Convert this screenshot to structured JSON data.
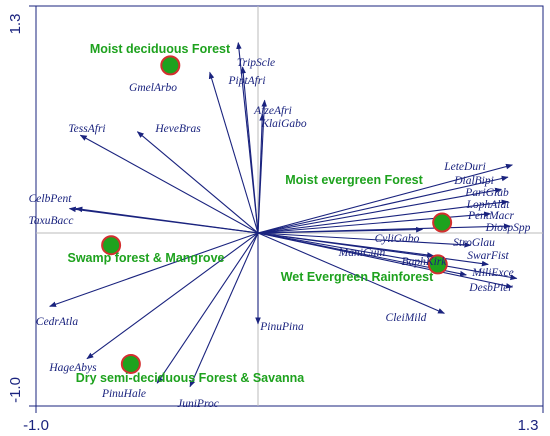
{
  "chart_data": {
    "type": "scatter",
    "title": "",
    "xlabel": "",
    "ylabel": "",
    "xlim": [
      -1.0,
      1.3
    ],
    "ylim": [
      -1.0,
      1.3
    ],
    "x_tick_labels": [
      "-1.0",
      "1.3"
    ],
    "y_tick_labels": [
      "1.3",
      "-1.0"
    ],
    "axis_lines_through_origin": true,
    "colors": {
      "arrow": "#1a237e",
      "group_label": "#1ea21e",
      "marker_fill": "#1ea21e",
      "marker_edge": "#d32f2f",
      "zero_lines": "#bbbbbb"
    },
    "species_arrows": [
      {
        "name": "TripScle",
        "x": -0.09,
        "y": 1.09
      },
      {
        "name": "PiptAfri",
        "x": -0.07,
        "y": 0.95
      },
      {
        "name": "GmelArbo",
        "x": -0.22,
        "y": 0.92
      },
      {
        "name": "AfzeAfri",
        "x": 0.03,
        "y": 0.76
      },
      {
        "name": "KlaiGabo",
        "x": 0.02,
        "y": 0.68
      },
      {
        "name": "TessAfri",
        "x": -0.81,
        "y": 0.56
      },
      {
        "name": "HeveBras",
        "x": -0.55,
        "y": 0.58
      },
      {
        "name": "CelbPent",
        "x": -0.86,
        "y": 0.14
      },
      {
        "name": "TaxuBacc",
        "x": -0.83,
        "y": 0.14
      },
      {
        "name": "LeteDuri",
        "x": 1.16,
        "y": 0.39
      },
      {
        "name": "DialBipi",
        "x": 1.14,
        "y": 0.32
      },
      {
        "name": "PariGlab",
        "x": 1.11,
        "y": 0.25
      },
      {
        "name": "LophAlat",
        "x": 1.14,
        "y": 0.18
      },
      {
        "name": "PentMacr",
        "x": 1.06,
        "y": 0.11
      },
      {
        "name": "DiospSpp",
        "x": 1.15,
        "y": 0.04
      },
      {
        "name": "CyliGabo",
        "x": 0.75,
        "y": 0.02
      },
      {
        "name": "StroGlau",
        "x": 0.97,
        "y": -0.07
      },
      {
        "name": "ManiCuin",
        "x": 0.8,
        "y": -0.13
      },
      {
        "name": "SwarFist",
        "x": 1.05,
        "y": -0.18
      },
      {
        "name": "BaphKirk",
        "x": 0.95,
        "y": -0.24
      },
      {
        "name": "MiliExce",
        "x": 1.18,
        "y": -0.26
      },
      {
        "name": "DesbPier",
        "x": 1.16,
        "y": -0.31
      },
      {
        "name": "CleiMild",
        "x": 0.85,
        "y": -0.46
      },
      {
        "name": "PinuPina",
        "x": 0.0,
        "y": -0.52
      },
      {
        "name": "CedrAtla",
        "x": -0.95,
        "y": -0.42
      },
      {
        "name": "HageAbys",
        "x": -0.78,
        "y": -0.72
      },
      {
        "name": "PinuHale",
        "x": -0.46,
        "y": -0.86
      },
      {
        "name": "JuniProc",
        "x": -0.31,
        "y": -0.88
      }
    ],
    "species_label_offsets_note": "",
    "groups": [
      {
        "name": "Moist deciduous Forest",
        "x": -0.4,
        "y": 0.96
      },
      {
        "name": "Moist evergreen Forest",
        "x": 0.84,
        "y": 0.06
      },
      {
        "name": "Swamp forest & Mangrove",
        "x": -0.67,
        "y": -0.07
      },
      {
        "name": "Wet Evergreen Rainforest",
        "x": 0.82,
        "y": -0.18
      },
      {
        "name": "Dry semi-deciduous Forest & Savanna",
        "x": -0.58,
        "y": -0.75
      }
    ]
  }
}
